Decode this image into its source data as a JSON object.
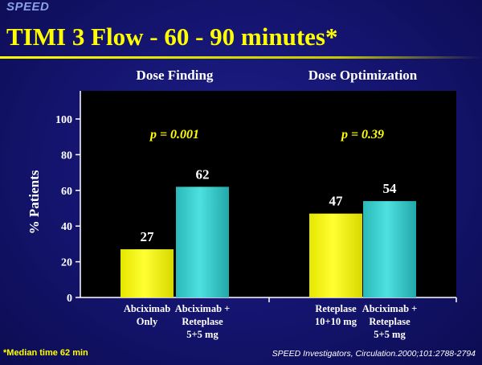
{
  "header": {
    "brand": "SPEED",
    "title": "TIMI  3 Flow - 60 - 90 minutes*"
  },
  "footer": {
    "footnote": "*Median time 62 min",
    "citation": "SPEED Investigators, Circulation.2000;101:2788-2794"
  },
  "colors": {
    "bar_yellow": "#ffff00",
    "bar_teal": "#33cccc",
    "pvalue": "#ffff00",
    "plot_bg": "#000000"
  },
  "chart_data": {
    "type": "bar",
    "ylabel": "% Patients",
    "ylim": [
      0,
      100
    ],
    "yticks": [
      0,
      20,
      40,
      60,
      80,
      100
    ],
    "grid": false,
    "groups": [
      {
        "label": "Dose Finding",
        "pvalue": "p = 0.001"
      },
      {
        "label": "Dose Optimization",
        "pvalue": "p = 0.39"
      }
    ],
    "bars": [
      {
        "group": 0,
        "category": [
          "Abciximab",
          "Only"
        ],
        "value": 27,
        "color": "yellow"
      },
      {
        "group": 0,
        "category": [
          "Abciximab +",
          "Reteplase",
          "5+5 mg"
        ],
        "value": 62,
        "color": "teal"
      },
      {
        "group": 1,
        "category": [
          "Reteplase",
          "10+10 mg"
        ],
        "value": 47,
        "color": "yellow"
      },
      {
        "group": 1,
        "category": [
          "Abciximab +",
          "Reteplase",
          "5+5 mg"
        ],
        "value": 54,
        "color": "teal"
      }
    ]
  }
}
